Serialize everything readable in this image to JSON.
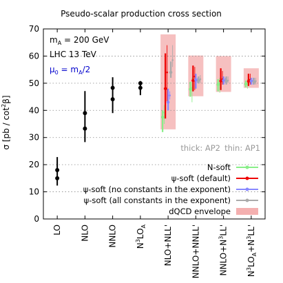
{
  "chart_data": {
    "type": "scatter",
    "title": "Pseudo-scalar production cross section",
    "ylabel": "σ [pb / cot²β]",
    "ylim": [
      0,
      70
    ],
    "yticks": [
      0,
      10,
      20,
      30,
      40,
      50,
      60,
      70
    ],
    "grid": "horizontal dotted",
    "legend_position": "bottom-right",
    "annotations": {
      "mass": "m_A = 200 GeV",
      "collider": "LHC 13 TeV",
      "scale": "μ₀ = m_A/2",
      "thick_note": "thick: AP2",
      "thin_note": "thin: AP1"
    },
    "categories": [
      {
        "label": "LO",
        "base": "LO",
        "sup": "",
        "rest": ""
      },
      {
        "label": "NLO",
        "base": "NLO",
        "sup": "",
        "rest": ""
      },
      {
        "label": "NNLO",
        "base": "NNLO",
        "sup": "",
        "rest": ""
      },
      {
        "label": "N3LO_A",
        "base": "N",
        "sup": "3",
        "rest": "LO",
        "sub": "A"
      },
      {
        "label": "NLO+NLL'",
        "base": "NLO+NLL'",
        "sup": "",
        "rest": ""
      },
      {
        "label": "NNLO+NNLL'",
        "base": "NNLO+NNLL'",
        "sup": "",
        "rest": ""
      },
      {
        "label": "NNLO+N3LL'",
        "base": "NNLO+N",
        "sup": "3",
        "rest": "LL'"
      },
      {
        "label": "N3LO_A+N3LL'",
        "base": "N",
        "sup": "3",
        "rest": "LO",
        "sub": "A",
        "tail_base": "+N",
        "tail_sup": "3",
        "tail_rest": "LL'"
      }
    ],
    "fixed_order": [
      {
        "category": "LO",
        "points": [
          {
            "y": 18.0,
            "low": 12.3,
            "high": 22.8
          },
          {
            "y": 15.0
          }
        ]
      },
      {
        "category": "NLO",
        "points": [
          {
            "y": 39.0,
            "low": 28.3,
            "high": 47.1
          },
          {
            "y": 33.3
          }
        ]
      },
      {
        "category": "NNLO",
        "points": [
          {
            "y": 48.3,
            "low": 39.0,
            "high": 52.2
          },
          {
            "y": 44.1
          }
        ]
      },
      {
        "category": "N3LO_A",
        "points": [
          {
            "y": 50.0,
            "low": 47.1,
            "high": 50.8
          },
          {
            "y": 48.3,
            "low": 45.6,
            "high": 49.6
          }
        ]
      }
    ],
    "series": [
      {
        "name": "N-soft",
        "color": "#88ee88",
        "thick": [
          {
            "y": 37.5,
            "low": 32.0,
            "high": 40.0
          },
          {
            "y": 47.8,
            "low": 45.0,
            "high": 50.5
          },
          {
            "y": 49.5,
            "low": 47.0,
            "high": 51.5
          },
          {
            "y": 49.7,
            "low": 48.5,
            "high": 51.0
          }
        ],
        "thin": [
          {
            "y": 39.2,
            "low": 35.0,
            "high": 42.0
          },
          {
            "y": 48.3,
            "low": 43.0,
            "high": 52.0
          },
          {
            "y": 50.0,
            "low": 46.5,
            "high": 52.0
          },
          {
            "y": 50.0,
            "low": 48.0,
            "high": 51.5
          }
        ]
      },
      {
        "name": "ψ-soft (default)",
        "color": "#ee0000",
        "thick": [
          {
            "y": 48.0,
            "low": 37.0,
            "high": 61.0
          },
          {
            "y": 51.0,
            "low": 47.0,
            "high": 56.5
          },
          {
            "y": 50.8,
            "low": 47.5,
            "high": 55.5
          },
          {
            "y": 50.7,
            "low": 49.0,
            "high": 53.5
          }
        ],
        "thin": [
          {
            "y": 54.0,
            "low": 43.0,
            "high": 64.0
          },
          {
            "y": 52.5,
            "low": 47.5,
            "high": 56.0
          },
          {
            "y": 51.5,
            "low": 49.5,
            "high": 54.5
          },
          {
            "y": 51.3,
            "low": 49.5,
            "high": 53.5
          }
        ]
      },
      {
        "name": "ψ-soft (no constants in the exponent)",
        "color": "#8888ff",
        "thick": [
          {
            "y": 43.0,
            "low": 40.0,
            "high": 48.0
          },
          {
            "y": 51.2,
            "low": 48.0,
            "high": 53.5
          },
          {
            "y": 51.0,
            "low": 49.5,
            "high": 52.5
          },
          {
            "y": 50.8,
            "low": 49.5,
            "high": 52.0
          }
        ],
        "thin": [
          {
            "y": 45.5,
            "low": 44.0,
            "high": 47.0
          },
          {
            "y": 51.0,
            "low": 50.0,
            "high": 52.0
          },
          {
            "y": 51.0,
            "low": 50.0,
            "high": 52.0
          },
          {
            "y": 50.8,
            "low": 49.5,
            "high": 52.0
          }
        ]
      },
      {
        "name": "ψ-soft (all constants in the exponent)",
        "color": "#aaaaaa",
        "thick": [
          {
            "y": 54.0,
            "low": 52.0,
            "high": 58.0
          },
          {
            "y": 51.0,
            "low": 50.0,
            "high": 52.5
          },
          {
            "y": 50.8,
            "low": 49.5,
            "high": 52.5
          },
          {
            "y": 50.5,
            "low": 49.5,
            "high": 52.0
          }
        ],
        "thin": [
          {
            "y": 58.5,
            "low": 56.0,
            "high": 64.0
          },
          {
            "y": 51.5,
            "low": 50.0,
            "high": 53.0
          },
          {
            "y": 51.0,
            "low": 50.0,
            "high": 52.5
          },
          {
            "y": 50.8,
            "low": 49.5,
            "high": 52.0
          }
        ]
      }
    ],
    "envelope": {
      "name": "dQCD envelope",
      "color": "#f4b0b0",
      "ranges": [
        {
          "category": "NLO+NLL'",
          "low": 33.0,
          "high": 68.0
        },
        {
          "category": "NNLO+NNLL'",
          "low": 45.2,
          "high": 60.2
        },
        {
          "category": "NNLO+N3LL'",
          "low": 46.8,
          "high": 60.0
        },
        {
          "category": "N3LO_A+N3LL'",
          "low": 48.3,
          "high": 55.5
        }
      ]
    }
  }
}
